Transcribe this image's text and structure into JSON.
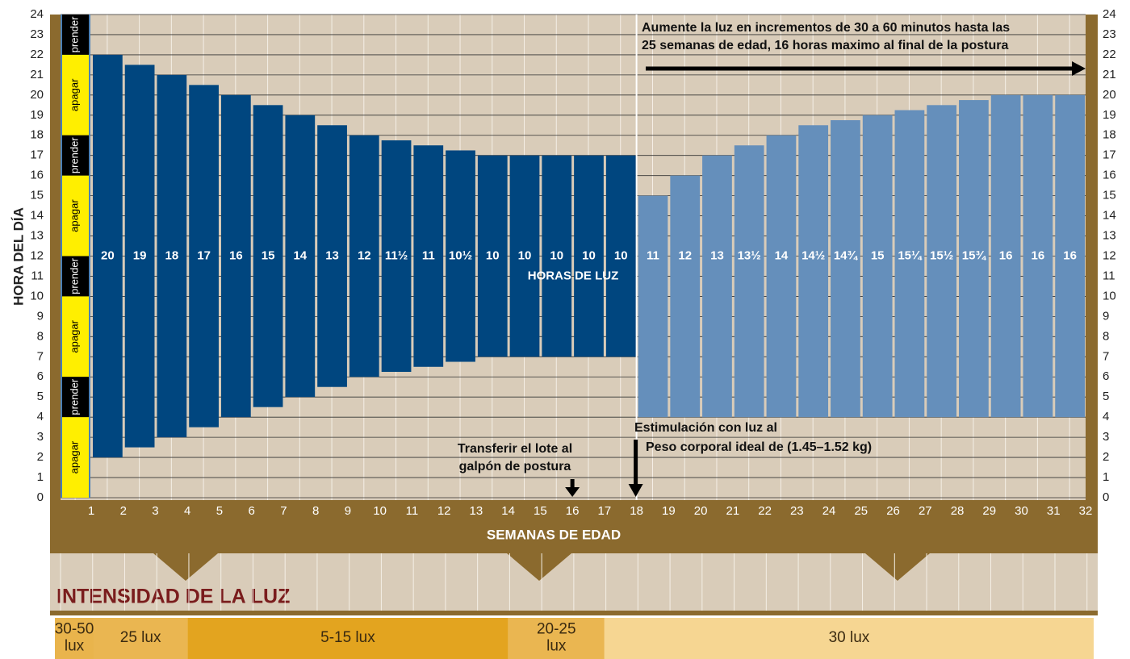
{
  "chart_data": {
    "type": "range_bar",
    "y_axis_label": "HORA DEL DÍA",
    "x_axis_label": "SEMANAS DE EDAD",
    "xticks": [
      1,
      2,
      3,
      4,
      5,
      6,
      7,
      8,
      9,
      10,
      11,
      12,
      13,
      14,
      15,
      16,
      17,
      18,
      19,
      20,
      21,
      22,
      23,
      24,
      25,
      26,
      27,
      28,
      29,
      30,
      31,
      32
    ],
    "ylim": [
      0,
      24
    ],
    "yticks": [
      0,
      1,
      2,
      3,
      4,
      5,
      6,
      7,
      8,
      9,
      10,
      11,
      12,
      13,
      14,
      15,
      16,
      17,
      18,
      19,
      20,
      21,
      22,
      23,
      24
    ],
    "grid": true,
    "lights_on": [
      2,
      2.5,
      3,
      3.5,
      4,
      4.5,
      5,
      5.5,
      6,
      6.25,
      6.5,
      6.75,
      7,
      7,
      7,
      7,
      7,
      4,
      4,
      4,
      4,
      4,
      4,
      4,
      4,
      4,
      4,
      4,
      4,
      4,
      4
    ],
    "lights_off": [
      22,
      21.5,
      21,
      20.5,
      20,
      19.5,
      19,
      18.5,
      18,
      17.75,
      17.5,
      17.25,
      17,
      17,
      17,
      17,
      17,
      15,
      16,
      17,
      17.5,
      18,
      18.5,
      18.75,
      19,
      19.25,
      19.5,
      19.75,
      20,
      20,
      20
    ],
    "hours": [
      20,
      19,
      18,
      17,
      16,
      15,
      14,
      13,
      12,
      11.5,
      11,
      10.5,
      10,
      10,
      10,
      10,
      10,
      11,
      12,
      13,
      13.5,
      14,
      14.5,
      14.75,
      15,
      15.25,
      15.5,
      15.75,
      16,
      16,
      16
    ],
    "value_labels": [
      "20",
      "19",
      "18",
      "17",
      "16",
      "15",
      "14",
      "13",
      "12",
      "11½",
      "11",
      "10½",
      "10",
      "10",
      "10",
      "10",
      "10",
      "11",
      "12",
      "13",
      "13½",
      "14",
      "14½",
      "14¾",
      "15",
      "15¼",
      "15½",
      "15¾",
      "16",
      "16",
      "16"
    ],
    "colors": [
      "#00467f",
      "#00467f",
      "#00467f",
      "#00467f",
      "#00467f",
      "#00467f",
      "#00467f",
      "#00467f",
      "#00467f",
      "#00467f",
      "#00467f",
      "#00467f",
      "#00467f",
      "#00467f",
      "#00467f",
      "#00467f",
      "#00467f",
      "#658fbb",
      "#658fbb",
      "#658fbb",
      "#658fbb",
      "#658fbb",
      "#658fbb",
      "#658fbb",
      "#658fbb",
      "#658fbb",
      "#658fbb",
      "#658fbb",
      "#658fbb",
      "#658fbb",
      "#658fbb"
    ],
    "light_schedule": [
      {
        "label": "prender",
        "from": 22,
        "to": 24,
        "color": "#000000"
      },
      {
        "label": "apagar",
        "from": 18,
        "to": 22,
        "color": "#ffef00"
      },
      {
        "label": "prender",
        "from": 16,
        "to": 18,
        "color": "#000000"
      },
      {
        "label": "apagar",
        "from": 12,
        "to": 16,
        "color": "#ffef00"
      },
      {
        "label": "prender",
        "from": 10,
        "to": 12,
        "color": "#000000"
      },
      {
        "label": "apagar",
        "from": 6,
        "to": 10,
        "color": "#ffef00"
      },
      {
        "label": "prender",
        "from": 4,
        "to": 6,
        "color": "#000000"
      },
      {
        "label": "apagar",
        "from": 0,
        "to": 4,
        "color": "#ffef00"
      }
    ],
    "annotations": {
      "hours_label": "HORAS DE LUZ",
      "top_note": [
        "Aumente la luz en incrementos de 30 a 60 minutos hasta las",
        "25 semanas de edad, 16 horas maximo al final de la postura"
      ],
      "stimulation": [
        "Estimulación con luz al",
        "Peso corporal ideal de (1.45–1.52 kg)"
      ],
      "transfer": [
        "Transferir el lote al",
        "galpón de postura"
      ]
    },
    "intensity": {
      "title": "INTENSIDAD DE LA LUZ",
      "levels": [
        {
          "label": [
            "30-50",
            "lux"
          ],
          "color": "#e9b44c"
        },
        {
          "label": [
            "25 lux"
          ],
          "color": "#eab651"
        },
        {
          "label": [
            "5-15 lux"
          ],
          "color": "#e3a41f"
        },
        {
          "label": [
            "20-25",
            "lux"
          ],
          "color": "#eab651"
        },
        {
          "label": [
            "30 lux"
          ],
          "color": "#f6d692"
        }
      ]
    }
  }
}
